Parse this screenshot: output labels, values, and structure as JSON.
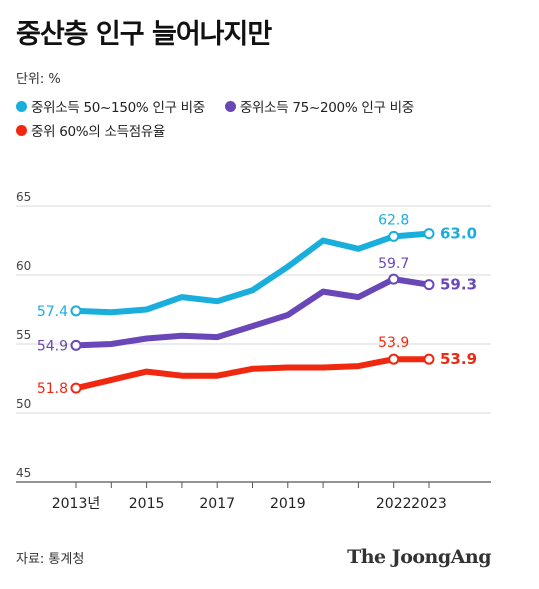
{
  "header": {
    "title": "중산층 인구 늘어나지만",
    "unit": "단위: %"
  },
  "colors": {
    "cyan": "#1aaedc",
    "purple": "#6a47b8",
    "red": "#f0280f",
    "grid": "#d9d9d9",
    "axis": "#555555"
  },
  "chart_data": {
    "type": "line",
    "x": [
      2013,
      2014,
      2015,
      2016,
      2017,
      2018,
      2019,
      2020,
      2021,
      2022,
      2023
    ],
    "x_tick_values": [
      2013,
      2015,
      2017,
      2019,
      2022,
      2023
    ],
    "x_tick_labels": [
      "2013년",
      "2015",
      "2017",
      "2019",
      "2022",
      "2023"
    ],
    "y_ticks": [
      45,
      50,
      55,
      60,
      65
    ],
    "ylim": [
      45,
      65
    ],
    "grid": true,
    "legend_position": "top-left",
    "series": [
      {
        "name": "중위소득 50~150% 인구 비중",
        "color": "#1aaedc",
        "values": [
          57.4,
          57.3,
          57.5,
          58.4,
          58.1,
          58.9,
          60.6,
          62.5,
          61.9,
          62.8,
          63.0
        ],
        "start_label": "57.4",
        "peak_label": "62.8",
        "end_label": "63.0"
      },
      {
        "name": "중위소득 75~200% 인구 비중",
        "color": "#6a47b8",
        "values": [
          54.9,
          55.0,
          55.4,
          55.6,
          55.5,
          56.3,
          57.1,
          58.8,
          58.4,
          59.7,
          59.3
        ],
        "start_label": "54.9",
        "peak_label": "59.7",
        "end_label": "59.3"
      },
      {
        "name": "중위 60%의 소득점유율",
        "color": "#f0280f",
        "values": [
          51.8,
          52.4,
          53.0,
          52.7,
          52.7,
          53.2,
          53.3,
          53.3,
          53.4,
          53.9,
          53.9
        ],
        "start_label": "51.8",
        "peak_label": "53.9",
        "end_label": "53.9"
      }
    ]
  },
  "footer": {
    "source": "자료: 통계청",
    "brand": "The JoongAng"
  }
}
